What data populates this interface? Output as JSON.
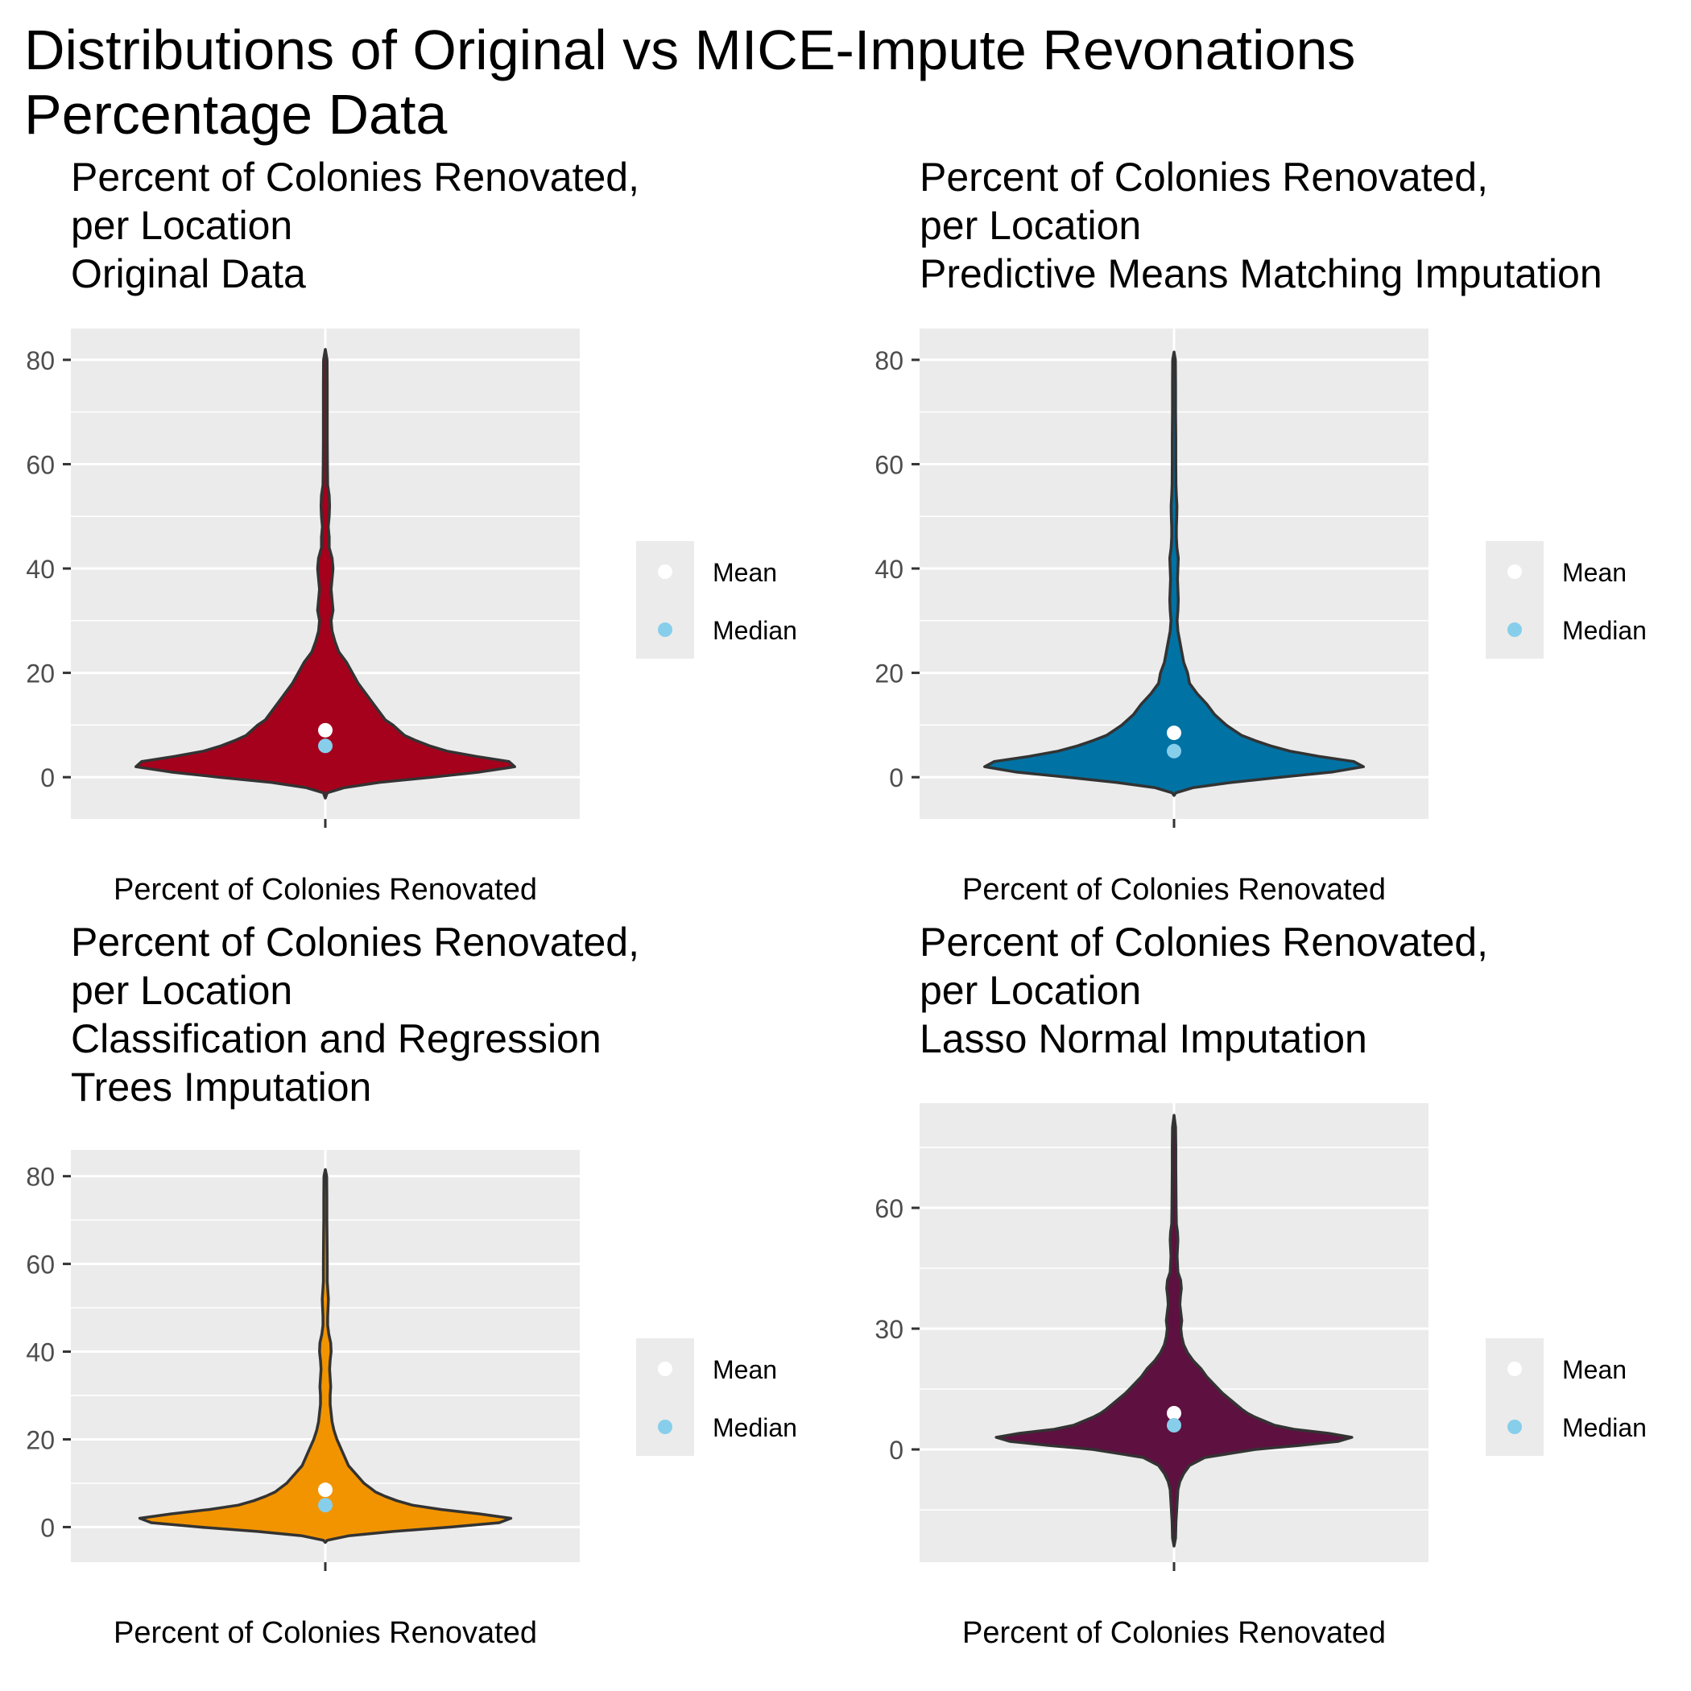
{
  "figure": {
    "title_lines": [
      "Distributions of Original vs MICE-Impute Revonations",
      "Percentage Data"
    ]
  },
  "colors": {
    "panel_bg": "#EBEBEB",
    "grid": "#FFFFFF",
    "outline": "#333333",
    "mean_point": "#FFFFFF",
    "median_point": "#87CEEB",
    "legend_bg": "#EBEBEB",
    "tick_text": "#4D4D4D"
  },
  "chart_data": [
    {
      "type": "violin",
      "title_lines": [
        "Percent of Colonies Renovated,",
        "per Location",
        "Original Data"
      ],
      "xlabel": "Percent of Colonies Renovated",
      "ylabel": "",
      "ylim": [
        -8,
        86
      ],
      "yticks": [
        0,
        20,
        40,
        60,
        80
      ],
      "fill": "#A5001C",
      "mean": 9.0,
      "median": 6.0,
      "legend": [
        "Mean",
        "Median"
      ],
      "density_profile": [
        [
          -4,
          0
        ],
        [
          -3,
          0.01
        ],
        [
          -2,
          0.1
        ],
        [
          -1,
          0.28
        ],
        [
          0,
          0.55
        ],
        [
          1,
          0.8
        ],
        [
          2,
          0.98
        ],
        [
          3,
          0.95
        ],
        [
          4,
          0.78
        ],
        [
          5,
          0.63
        ],
        [
          6,
          0.54
        ],
        [
          7,
          0.47
        ],
        [
          8,
          0.41
        ],
        [
          9,
          0.38
        ],
        [
          10,
          0.35
        ],
        [
          11,
          0.31
        ],
        [
          12,
          0.29
        ],
        [
          14,
          0.25
        ],
        [
          16,
          0.21
        ],
        [
          18,
          0.17
        ],
        [
          20,
          0.14
        ],
        [
          22,
          0.11
        ],
        [
          24,
          0.07
        ],
        [
          26,
          0.05
        ],
        [
          28,
          0.035
        ],
        [
          30,
          0.03
        ],
        [
          32,
          0.04
        ],
        [
          34,
          0.035
        ],
        [
          36,
          0.03
        ],
        [
          38,
          0.035
        ],
        [
          40,
          0.04
        ],
        [
          42,
          0.035
        ],
        [
          44,
          0.02
        ],
        [
          46,
          0.02
        ],
        [
          48,
          0.015
        ],
        [
          50,
          0.02
        ],
        [
          52,
          0.022
        ],
        [
          54,
          0.02
        ],
        [
          56,
          0.012
        ],
        [
          60,
          0.011
        ],
        [
          65,
          0.01
        ],
        [
          70,
          0.01
        ],
        [
          75,
          0.01
        ],
        [
          80,
          0.009
        ],
        [
          82,
          0
        ]
      ]
    },
    {
      "type": "violin",
      "title_lines": [
        "Percent of Colonies Renovated,",
        "per Location",
        "Predictive Means Matching Imputation"
      ],
      "xlabel": "Percent of Colonies Renovated",
      "ylabel": "",
      "ylim": [
        -8,
        86
      ],
      "yticks": [
        0,
        20,
        40,
        60,
        80
      ],
      "fill": "#0072A3",
      "mean": 8.5,
      "median": 5.0,
      "legend": [
        "Mean",
        "Median"
      ],
      "density_profile": [
        [
          -3.5,
          0
        ],
        [
          -3,
          0.01
        ],
        [
          -2,
          0.1
        ],
        [
          -1,
          0.3
        ],
        [
          0,
          0.55
        ],
        [
          1,
          0.82
        ],
        [
          2,
          0.98
        ],
        [
          3,
          0.93
        ],
        [
          4,
          0.75
        ],
        [
          5,
          0.6
        ],
        [
          6,
          0.5
        ],
        [
          7,
          0.42
        ],
        [
          8,
          0.35
        ],
        [
          9,
          0.31
        ],
        [
          10,
          0.27
        ],
        [
          11,
          0.24
        ],
        [
          12,
          0.21
        ],
        [
          14,
          0.17
        ],
        [
          16,
          0.12
        ],
        [
          18,
          0.08
        ],
        [
          20,
          0.07
        ],
        [
          22,
          0.05
        ],
        [
          24,
          0.04
        ],
        [
          26,
          0.03
        ],
        [
          28,
          0.02
        ],
        [
          30,
          0.016
        ],
        [
          32,
          0.02
        ],
        [
          34,
          0.022
        ],
        [
          36,
          0.02
        ],
        [
          38,
          0.018
        ],
        [
          40,
          0.02
        ],
        [
          42,
          0.022
        ],
        [
          44,
          0.015
        ],
        [
          46,
          0.012
        ],
        [
          48,
          0.012
        ],
        [
          50,
          0.014
        ],
        [
          52,
          0.015
        ],
        [
          54,
          0.012
        ],
        [
          56,
          0.01
        ],
        [
          60,
          0.009
        ],
        [
          65,
          0.009
        ],
        [
          70,
          0.008
        ],
        [
          75,
          0.008
        ],
        [
          80,
          0.007
        ],
        [
          81.5,
          0
        ]
      ]
    },
    {
      "type": "violin",
      "title_lines": [
        "Percent of Colonies Renovated,",
        "per Location",
        "Classification and Regression",
        "Trees Imputation"
      ],
      "xlabel": "Percent of Colonies Renovated",
      "ylabel": "",
      "ylim": [
        -8,
        86
      ],
      "yticks": [
        0,
        20,
        40,
        60,
        80
      ],
      "fill": "#F29400",
      "mean": 8.5,
      "median": 5.0,
      "legend": [
        "Mean",
        "Median"
      ],
      "density_profile": [
        [
          -3.5,
          0
        ],
        [
          -3,
          0.01
        ],
        [
          -2,
          0.12
        ],
        [
          -1,
          0.35
        ],
        [
          0,
          0.65
        ],
        [
          1,
          0.9
        ],
        [
          2,
          0.96
        ],
        [
          3,
          0.8
        ],
        [
          4,
          0.6
        ],
        [
          5,
          0.45
        ],
        [
          6,
          0.37
        ],
        [
          7,
          0.31
        ],
        [
          8,
          0.26
        ],
        [
          9,
          0.23
        ],
        [
          10,
          0.2
        ],
        [
          11,
          0.18
        ],
        [
          12,
          0.16
        ],
        [
          14,
          0.12
        ],
        [
          16,
          0.1
        ],
        [
          18,
          0.08
        ],
        [
          20,
          0.06
        ],
        [
          22,
          0.045
        ],
        [
          24,
          0.035
        ],
        [
          26,
          0.03
        ],
        [
          28,
          0.025
        ],
        [
          30,
          0.025
        ],
        [
          32,
          0.028
        ],
        [
          34,
          0.025
        ],
        [
          36,
          0.022
        ],
        [
          38,
          0.025
        ],
        [
          40,
          0.03
        ],
        [
          42,
          0.028
        ],
        [
          44,
          0.018
        ],
        [
          46,
          0.012
        ],
        [
          48,
          0.012
        ],
        [
          50,
          0.014
        ],
        [
          52,
          0.016
        ],
        [
          54,
          0.013
        ],
        [
          56,
          0.01
        ],
        [
          60,
          0.01
        ],
        [
          65,
          0.009
        ],
        [
          70,
          0.008
        ],
        [
          75,
          0.008
        ],
        [
          80,
          0.007
        ],
        [
          81.5,
          0
        ]
      ]
    },
    {
      "type": "violin",
      "title_lines": [
        "Percent of Colonies Renovated,",
        "per Location",
        "Lasso Normal Imputation"
      ],
      "xlabel": "Percent of Colonies Renovated",
      "ylabel": "",
      "ylim": [
        -28,
        86
      ],
      "yticks": [
        0,
        30,
        60
      ],
      "fill": "#5E1040",
      "mean": 9.0,
      "median": 6.0,
      "legend": [
        "Mean",
        "Median"
      ],
      "density_profile": [
        [
          -24,
          0
        ],
        [
          -22,
          0.008
        ],
        [
          -18,
          0.01
        ],
        [
          -14,
          0.015
        ],
        [
          -10,
          0.02
        ],
        [
          -8,
          0.03
        ],
        [
          -6,
          0.05
        ],
        [
          -4,
          0.08
        ],
        [
          -2,
          0.16
        ],
        [
          0,
          0.42
        ],
        [
          1,
          0.65
        ],
        [
          2,
          0.85
        ],
        [
          3,
          0.92
        ],
        [
          4,
          0.8
        ],
        [
          5,
          0.62
        ],
        [
          6,
          0.52
        ],
        [
          7,
          0.47
        ],
        [
          8,
          0.42
        ],
        [
          9,
          0.38
        ],
        [
          10,
          0.35
        ],
        [
          12,
          0.3
        ],
        [
          14,
          0.25
        ],
        [
          16,
          0.21
        ],
        [
          18,
          0.17
        ],
        [
          20,
          0.14
        ],
        [
          22,
          0.1
        ],
        [
          24,
          0.07
        ],
        [
          26,
          0.05
        ],
        [
          28,
          0.04
        ],
        [
          30,
          0.035
        ],
        [
          32,
          0.04
        ],
        [
          34,
          0.035
        ],
        [
          36,
          0.03
        ],
        [
          38,
          0.033
        ],
        [
          40,
          0.038
        ],
        [
          42,
          0.034
        ],
        [
          44,
          0.02
        ],
        [
          46,
          0.018
        ],
        [
          48,
          0.016
        ],
        [
          50,
          0.018
        ],
        [
          52,
          0.02
        ],
        [
          54,
          0.018
        ],
        [
          56,
          0.012
        ],
        [
          60,
          0.011
        ],
        [
          65,
          0.01
        ],
        [
          70,
          0.009
        ],
        [
          75,
          0.009
        ],
        [
          80,
          0.008
        ],
        [
          83,
          0
        ]
      ]
    }
  ]
}
